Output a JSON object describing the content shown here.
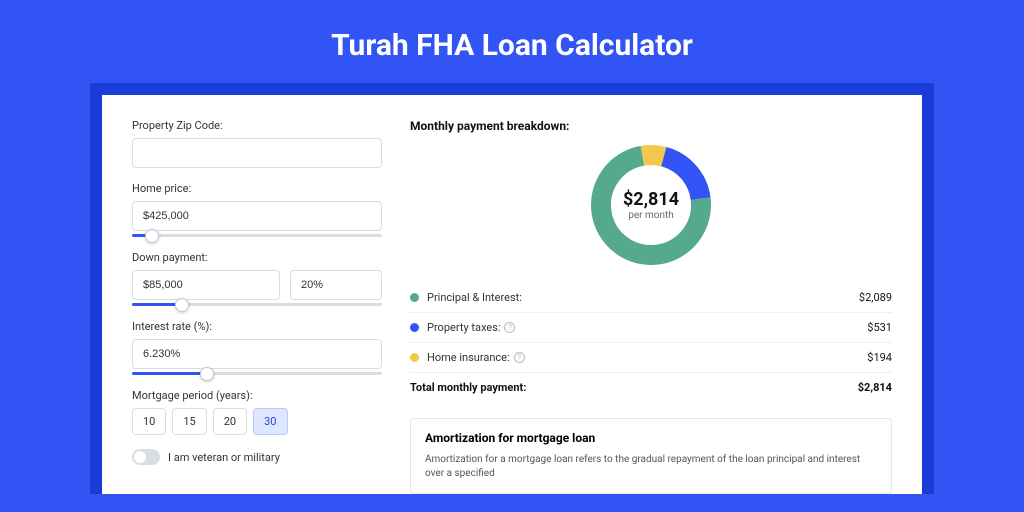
{
  "title": "Turah FHA Loan Calculator",
  "form": {
    "zip": {
      "label": "Property Zip Code:",
      "value": ""
    },
    "home_price": {
      "label": "Home price:",
      "value": "$425,000",
      "slider_pct": 8
    },
    "down_payment": {
      "label": "Down payment:",
      "amount": "$85,000",
      "pct": "20%",
      "slider_pct": 20
    },
    "interest_rate": {
      "label": "Interest rate (%):",
      "value": "6.230%",
      "slider_pct": 30
    },
    "mortgage_period": {
      "label": "Mortgage period (years):",
      "options": [
        "10",
        "15",
        "20",
        "30"
      ],
      "selected": "30"
    },
    "veteran": {
      "label": "I am veteran or military",
      "checked": false
    }
  },
  "breakdown": {
    "title": "Monthly payment breakdown:",
    "center_amount": "$2,814",
    "center_sub": "per month",
    "items": [
      {
        "label": "Principal & Interest:",
        "value": "$2,089",
        "color": "#55a98f",
        "num": 2089,
        "info": false
      },
      {
        "label": "Property taxes:",
        "value": "$531",
        "color": "#3254f4",
        "num": 531,
        "info": true
      },
      {
        "label": "Home insurance:",
        "value": "$194",
        "color": "#f2c94c",
        "num": 194,
        "info": true
      }
    ],
    "total": {
      "label": "Total monthly payment:",
      "value": "$2,814"
    },
    "donut": {
      "size": 120,
      "thickness": 20,
      "bg": "#ffffff"
    }
  },
  "amortization": {
    "title": "Amortization for mortgage loan",
    "text": "Amortization for a mortgage loan refers to the gradual repayment of the loan principal and interest over a specified"
  }
}
